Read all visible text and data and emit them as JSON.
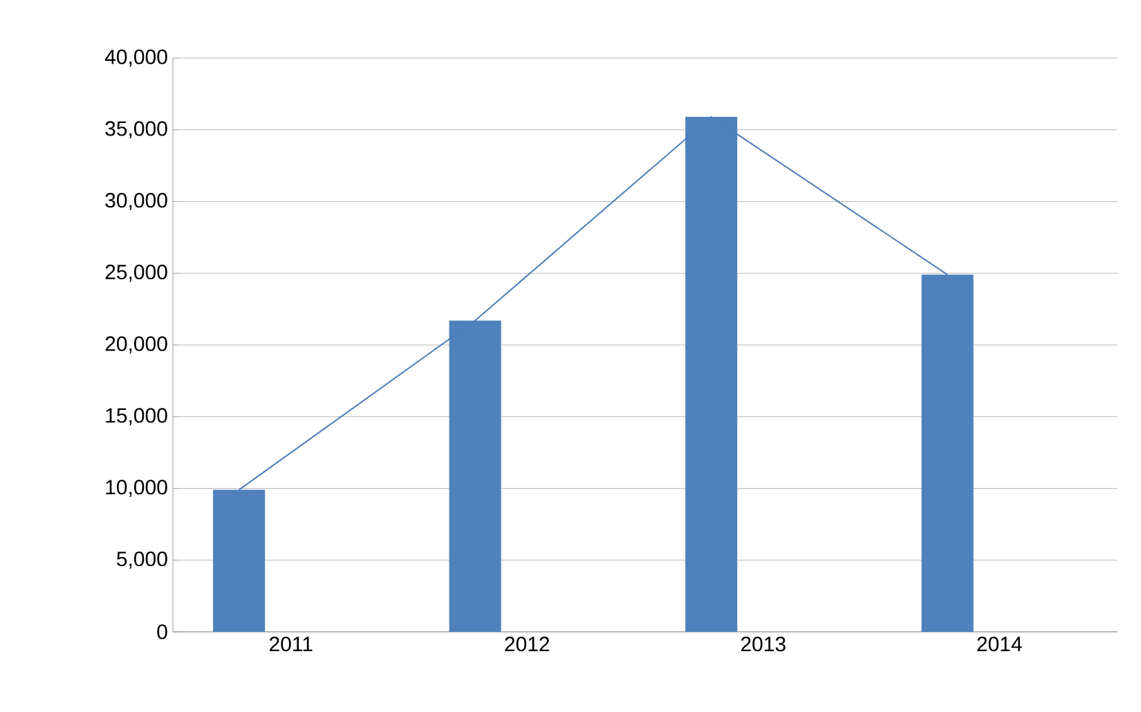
{
  "chart_data": {
    "type": "bar",
    "categories": [
      "2011",
      "2012",
      "2013",
      "2014"
    ],
    "series": [
      {
        "color": "#4f81bd",
        "values": [
          9900,
          21700,
          35900,
          24900
        ]
      },
      {
        "type": "line",
        "color": "#4a7ebb",
        "values": [
          9900,
          21700,
          35900,
          24900
        ]
      }
    ],
    "ylim": [
      0,
      40000
    ],
    "yticks": [
      {
        "value": 0,
        "label": "0"
      },
      {
        "value": 5000,
        "label": "5,000"
      },
      {
        "value": 10000,
        "label": "10,000"
      },
      {
        "value": 15000,
        "label": "15,000"
      },
      {
        "value": 20000,
        "label": "20,000"
      },
      {
        "value": 25000,
        "label": "25,000"
      },
      {
        "value": 30000,
        "label": "30,000"
      },
      {
        "value": 35000,
        "label": "35,000"
      },
      {
        "value": 40000,
        "label": "40,000"
      }
    ],
    "grid": "y",
    "marker": "none"
  }
}
